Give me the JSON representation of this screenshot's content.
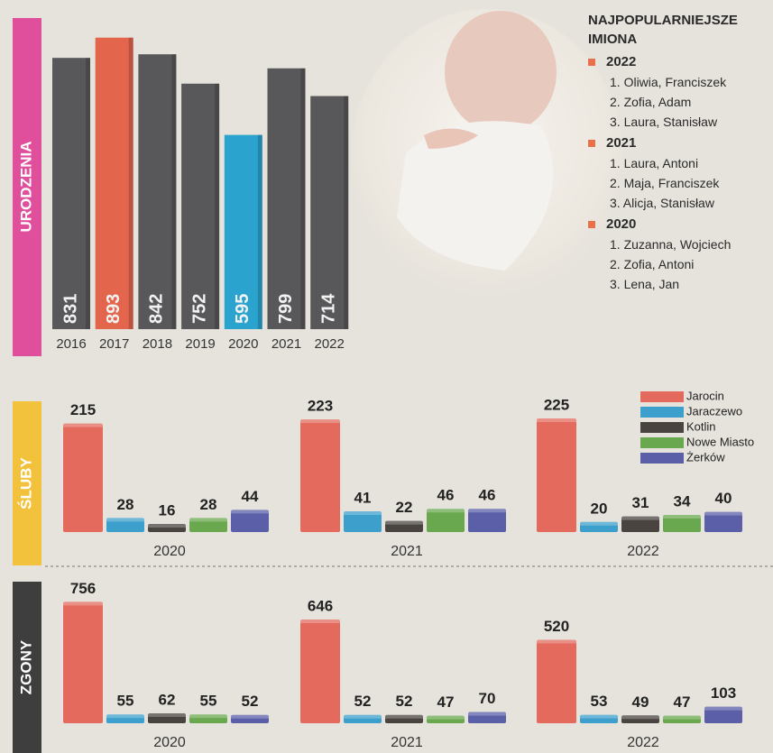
{
  "chart_data": [
    {
      "type": "bar",
      "label": "URODZENIA",
      "categories": [
        "2016",
        "2017",
        "2018",
        "2019",
        "2020",
        "2021",
        "2022"
      ],
      "values": [
        831,
        893,
        842,
        752,
        595,
        799,
        714
      ],
      "colors": [
        "#58585a",
        "#e2654c",
        "#58585a",
        "#58585a",
        "#2aa3cf",
        "#58585a",
        "#58585a"
      ]
    },
    {
      "type": "grouped_bar",
      "label": "ŚLUBY",
      "categories": [
        "2020",
        "2021",
        "2022"
      ],
      "series": [
        {
          "name": "Jarocin",
          "color": "#e36a5c",
          "values": [
            215,
            223,
            225
          ]
        },
        {
          "name": "Jaraczewo",
          "color": "#3d9fcc",
          "values": [
            28,
            41,
            20
          ]
        },
        {
          "name": "Kotlin",
          "color": "#4a4440",
          "values": [
            16,
            22,
            31
          ]
        },
        {
          "name": "Nowe Miasto",
          "color": "#6aa84f",
          "values": [
            28,
            46,
            34
          ]
        },
        {
          "name": "Żerków",
          "color": "#5a5fa8",
          "values": [
            44,
            46,
            40
          ]
        }
      ]
    },
    {
      "type": "grouped_bar",
      "label": "ZGONY",
      "categories": [
        "2020",
        "2021",
        "2022"
      ],
      "series": [
        {
          "color": "#e36a5c",
          "values": [
            756,
            646,
            520
          ]
        },
        {
          "color": "#3d9fcc",
          "values": [
            55,
            52,
            53
          ]
        },
        {
          "color": "#4a4440",
          "values": [
            62,
            52,
            49
          ]
        },
        {
          "color": "#6aa84f",
          "values": [
            55,
            47,
            47
          ]
        },
        {
          "color": "#5a5fa8",
          "values": [
            52,
            70,
            103
          ]
        }
      ]
    }
  ],
  "names_box": {
    "title": "NAJPOPULARNIEJSZE IMIONA",
    "groups": [
      {
        "year": "2022",
        "items": [
          "1. Oliwia, Franciszek",
          "2. Zofia, Adam",
          "3. Laura, Stanisław"
        ]
      },
      {
        "year": "2021",
        "items": [
          "1. Laura, Antoni",
          "2. Maja, Franciszek",
          "3. Alicja, Stanisław"
        ]
      },
      {
        "year": "2020",
        "items": [
          "1. Zuzanna, Wojciech",
          "2. Zofia, Antoni",
          "3. Lena, Jan"
        ]
      }
    ]
  }
}
